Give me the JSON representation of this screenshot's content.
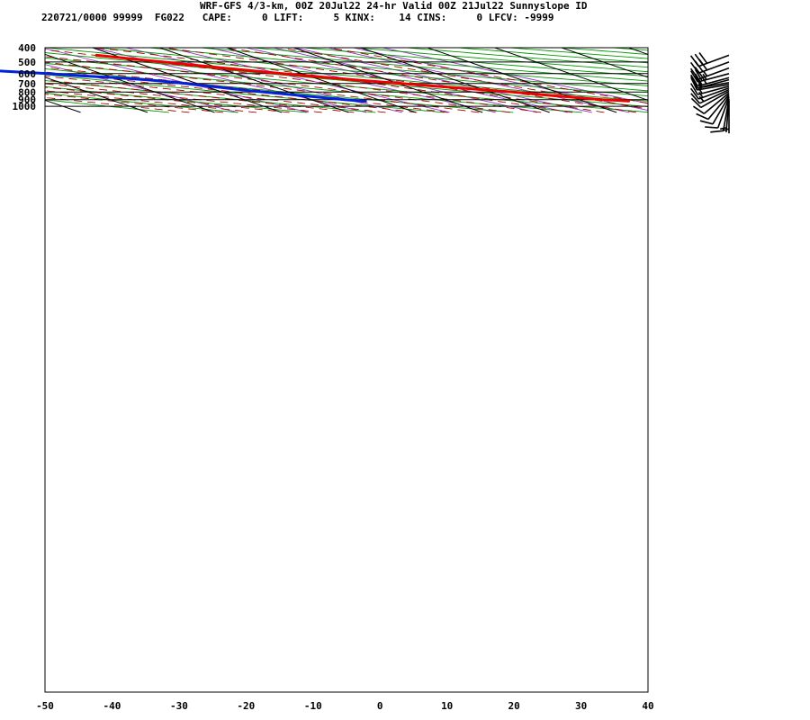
{
  "header": {
    "line1": "WRF-GFS 4/3-km, 00Z 20Jul22 24-hr Valid 00Z 21Jul22 Sunnyslope ID",
    "line2": "220721/0000 99999  FG022   CAPE:     0 LIFT:     5 KINX:    14 CINS:     0 LFCV: -9999"
  },
  "colors": {
    "temperature": "#ee0000",
    "dewpoint": "#0022dd",
    "isotherm_grid": "#000000",
    "dry_adiabat": "#009900",
    "moist_adiabat": "#aa0000",
    "mixing_ratio": "#9933cc",
    "wind_barb": "#000000"
  },
  "chart_data": {
    "type": "line",
    "subtype": "skew-T log-P sounding",
    "title": "WRF-GFS 4/3-km, 00Z 20Jul22 24-hr Valid 00Z 21Jul22 Sunnyslope ID",
    "xlabel": "",
    "ylabel": "",
    "x_ticks": [
      -50,
      -40,
      -30,
      -20,
      -10,
      0,
      10,
      20,
      30,
      40
    ],
    "y_ticks": [
      400,
      500,
      600,
      700,
      800,
      900,
      1000
    ],
    "ylim": [
      400,
      1040
    ],
    "y_scale": "log",
    "grid": true,
    "series": [
      {
        "key": "temperature",
        "points": [
          {
            "p": 920,
            "t": 36.8
          },
          {
            "p": 910,
            "t": 35.0
          },
          {
            "p": 900,
            "t": 33.5
          },
          {
            "p": 880,
            "t": 31.4
          },
          {
            "p": 860,
            "t": 29.2
          },
          {
            "p": 840,
            "t": 27.2
          },
          {
            "p": 820,
            "t": 25.2
          },
          {
            "p": 800,
            "t": 23.4
          },
          {
            "p": 780,
            "t": 21.0
          },
          {
            "p": 760,
            "t": 18.5
          },
          {
            "p": 740,
            "t": 15.8
          },
          {
            "p": 720,
            "t": 13.0
          },
          {
            "p": 700,
            "t": 10.5
          },
          {
            "p": 680,
            "t": 7.8
          },
          {
            "p": 660,
            "t": 5.0
          },
          {
            "p": 640,
            "t": 2.4
          },
          {
            "p": 620,
            "t": -0.3
          },
          {
            "p": 600,
            "t": -3.0
          },
          {
            "p": 580,
            "t": -5.5
          },
          {
            "p": 560,
            "t": -8.0
          },
          {
            "p": 540,
            "t": -10.5
          },
          {
            "p": 520,
            "t": -13.0
          },
          {
            "p": 500,
            "t": -15.6
          },
          {
            "p": 480,
            "t": -18.5
          },
          {
            "p": 460,
            "t": -21.3
          },
          {
            "p": 450,
            "t": -22.7
          }
        ]
      },
      {
        "key": "dewpoint",
        "points": [
          {
            "p": 920,
            "t": -2.5
          },
          {
            "p": 918,
            "t": -3.2
          },
          {
            "p": 900,
            "t": -5.0
          },
          {
            "p": 860,
            "t": -8.5
          },
          {
            "p": 820,
            "t": -12.0
          },
          {
            "p": 780,
            "t": -15.5
          },
          {
            "p": 740,
            "t": -18.5
          },
          {
            "p": 720,
            "t": -20.3
          },
          {
            "p": 700,
            "t": -21.8
          },
          {
            "p": 680,
            "t": -23.5
          },
          {
            "p": 660,
            "t": -26.0
          },
          {
            "p": 640,
            "t": -29.5
          },
          {
            "p": 620,
            "t": -34.0
          },
          {
            "p": 600,
            "t": -38.0
          },
          {
            "p": 580,
            "t": -43.0
          },
          {
            "p": 550,
            "t": -50.0
          },
          {
            "p": 530,
            "t": -58.5
          },
          {
            "p": 520,
            "t": -62.5
          },
          {
            "p": 500,
            "t": -70.2
          },
          {
            "p": 480,
            "t": -72.4
          },
          {
            "p": 460,
            "t": -74.8
          },
          {
            "p": 450,
            "t": -76.0
          }
        ]
      }
    ],
    "wind_barbs": [
      {
        "p": 450,
        "dir": 250,
        "spd": 30
      },
      {
        "p": 500,
        "dir": 250,
        "spd": 30
      },
      {
        "p": 550,
        "dir": 250,
        "spd": 25
      },
      {
        "p": 600,
        "dir": 255,
        "spd": 25
      },
      {
        "p": 640,
        "dir": 255,
        "spd": 25
      },
      {
        "p": 660,
        "dir": 255,
        "spd": 20
      },
      {
        "p": 690,
        "dir": 260,
        "spd": 20
      },
      {
        "p": 710,
        "dir": 260,
        "spd": 15
      },
      {
        "p": 730,
        "dir": 255,
        "spd": 15
      },
      {
        "p": 750,
        "dir": 250,
        "spd": 15
      },
      {
        "p": 770,
        "dir": 245,
        "spd": 15
      },
      {
        "p": 790,
        "dir": 240,
        "spd": 10
      },
      {
        "p": 810,
        "dir": 230,
        "spd": 10
      },
      {
        "p": 830,
        "dir": 220,
        "spd": 10
      },
      {
        "p": 850,
        "dir": 210,
        "spd": 10
      },
      {
        "p": 870,
        "dir": 200,
        "spd": 10
      },
      {
        "p": 890,
        "dir": 190,
        "spd": 10
      },
      {
        "p": 905,
        "dir": 185,
        "spd": 5
      },
      {
        "p": 920,
        "dir": 180,
        "spd": 5
      }
    ]
  }
}
